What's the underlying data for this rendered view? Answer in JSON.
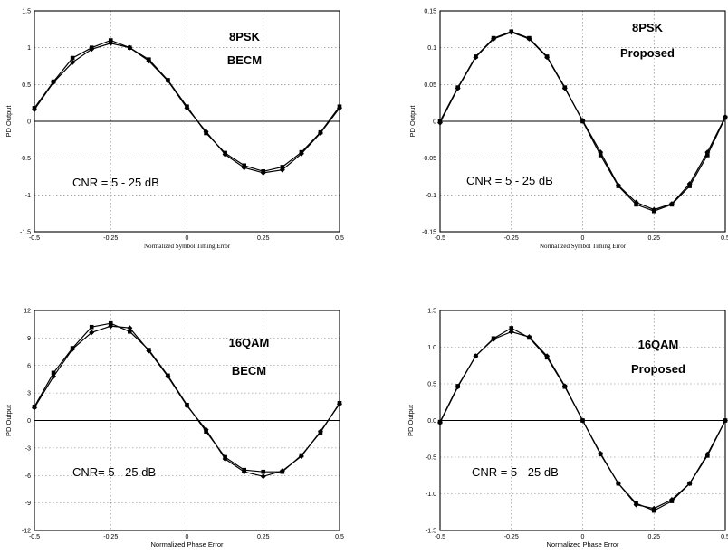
{
  "chart_data": [
    {
      "type": "line",
      "xlabel": "Normalized Symbol Timing Error",
      "ylabel": "PD Output",
      "xlim": [
        -0.5,
        0.5
      ],
      "ylim": [
        -1.5,
        1.5
      ],
      "xticks": [
        "-0.5",
        "-0.25",
        "0",
        "0.25",
        "0.5"
      ],
      "yticks": [
        "1.5",
        "1",
        "0.5",
        "0",
        "-0.5",
        "-1",
        "-1.5"
      ],
      "annotations": [
        "8PSK",
        "BECM"
      ],
      "cnr_label": "CNR = 5 - 25 dB",
      "grid": true,
      "series": [
        {
          "x": [
            -0.5,
            -0.4375,
            -0.375,
            -0.3125,
            -0.25,
            -0.1875,
            -0.125,
            -0.0625,
            0,
            0.0625,
            0.125,
            0.1875,
            0.25,
            0.3125,
            0.375,
            0.4375,
            0.5
          ],
          "values": [
            0.18,
            0.54,
            0.86,
            1.0,
            1.1,
            1.0,
            0.84,
            0.56,
            0.2,
            -0.16,
            -0.43,
            -0.6,
            -0.68,
            -0.62,
            -0.42,
            -0.15,
            0.2
          ]
        },
        {
          "x": [
            -0.5,
            -0.4375,
            -0.375,
            -0.3125,
            -0.25,
            -0.1875,
            -0.125,
            -0.0625,
            0,
            0.0625,
            0.125,
            0.1875,
            0.25,
            0.3125,
            0.375,
            0.4375,
            0.5
          ],
          "values": [
            0.16,
            0.53,
            0.8,
            0.98,
            1.06,
            1.0,
            0.82,
            0.55,
            0.18,
            -0.14,
            -0.45,
            -0.63,
            -0.7,
            -0.66,
            -0.44,
            -0.16,
            0.18
          ]
        }
      ]
    },
    {
      "type": "line",
      "xlabel": "Normalized Symbol Timing Error",
      "ylabel": "PD Output",
      "xlim": [
        -0.5,
        0.5
      ],
      "ylim": [
        -0.15,
        0.15
      ],
      "xticks": [
        "-0.5",
        "-0.25",
        "0",
        "0.25",
        "0.5"
      ],
      "yticks": [
        "0.15",
        "0.1",
        "0.05",
        "0",
        "-0.05",
        "-0.1",
        "-0.15"
      ],
      "annotations": [
        "8PSK",
        "Proposed"
      ],
      "cnr_label": "CNR = 5 - 25 dB",
      "grid": true,
      "series": [
        {
          "x": [
            -0.5,
            -0.4375,
            -0.375,
            -0.3125,
            -0.25,
            -0.1875,
            -0.125,
            -0.0625,
            0,
            0.0625,
            0.125,
            0.1875,
            0.25,
            0.3125,
            0.375,
            0.4375,
            0.5
          ],
          "values": [
            0.0,
            0.046,
            0.088,
            0.113,
            0.122,
            0.113,
            0.088,
            0.046,
            0.0,
            -0.046,
            -0.088,
            -0.113,
            -0.122,
            -0.113,
            -0.088,
            -0.046,
            0.005
          ]
        },
        {
          "x": [
            -0.5,
            -0.4375,
            -0.375,
            -0.3125,
            -0.25,
            -0.1875,
            -0.125,
            -0.0625,
            0,
            0.0625,
            0.125,
            0.1875,
            0.25,
            0.3125,
            0.375,
            0.4375,
            0.5
          ],
          "values": [
            -0.002,
            0.045,
            0.087,
            0.112,
            0.121,
            0.112,
            0.087,
            0.045,
            0.001,
            -0.042,
            -0.087,
            -0.11,
            -0.12,
            -0.112,
            -0.085,
            -0.042,
            0.006
          ]
        }
      ]
    },
    {
      "type": "line",
      "xlabel": "Normalized Phase Error",
      "ylabel": "PD Output",
      "xlim": [
        -0.5,
        0.5
      ],
      "ylim": [
        -12,
        12
      ],
      "xticks": [
        "-0.5",
        "-0.25",
        "0",
        "0.25",
        "0.5"
      ],
      "yticks": [
        "12",
        "9",
        "6",
        "3",
        "0",
        "-3",
        "-6",
        "-9",
        "-12"
      ],
      "annotations": [
        "16QAM",
        "BECM"
      ],
      "cnr_label": "CNR= 5 - 25 dB",
      "grid": true,
      "series": [
        {
          "x": [
            -0.5,
            -0.4375,
            -0.375,
            -0.3125,
            -0.25,
            -0.1875,
            -0.125,
            -0.0625,
            0,
            0.0625,
            0.125,
            0.1875,
            0.25,
            0.3125,
            0.375,
            0.4375,
            0.5
          ],
          "values": [
            1.5,
            5.2,
            7.9,
            10.2,
            10.6,
            9.7,
            7.7,
            4.9,
            1.7,
            -1.2,
            -4.0,
            -5.4,
            -5.6,
            -5.6,
            -3.8,
            -1.3,
            1.9
          ]
        },
        {
          "x": [
            -0.5,
            -0.4375,
            -0.375,
            -0.3125,
            -0.25,
            -0.1875,
            -0.125,
            -0.0625,
            0,
            0.0625,
            0.125,
            0.1875,
            0.25,
            0.3125,
            0.375,
            0.4375,
            0.5
          ],
          "values": [
            1.4,
            4.8,
            7.8,
            9.6,
            10.3,
            10.1,
            7.6,
            4.8,
            1.6,
            -1.0,
            -4.2,
            -5.6,
            -6.1,
            -5.5,
            -3.9,
            -1.2,
            1.8
          ]
        }
      ]
    },
    {
      "type": "line",
      "xlabel": "Normalized Phase Error",
      "ylabel": "PD Output",
      "xlim": [
        -0.5,
        0.5
      ],
      "ylim": [
        -1.5,
        1.5
      ],
      "xticks": [
        "-0.5",
        "-0.25",
        "0",
        "0.25",
        "0.5"
      ],
      "yticks": [
        "1.5",
        "1.0",
        "0.5",
        "0.0",
        "-0.5",
        "-1.0",
        "-1.5"
      ],
      "annotations": [
        "16QAM",
        "Proposed"
      ],
      "cnr_label": "CNR = 5 - 25 dB",
      "grid": true,
      "series": [
        {
          "x": [
            -0.5,
            -0.4375,
            -0.375,
            -0.3125,
            -0.25,
            -0.1875,
            -0.125,
            -0.0625,
            0,
            0.0625,
            0.125,
            0.1875,
            0.25,
            0.3125,
            0.375,
            0.4375,
            0.5
          ],
          "values": [
            -0.02,
            0.47,
            0.88,
            1.12,
            1.26,
            1.13,
            0.86,
            0.46,
            0.0,
            -0.46,
            -0.86,
            -1.13,
            -1.23,
            -1.1,
            -0.86,
            -0.48,
            0.0
          ]
        },
        {
          "x": [
            -0.5,
            -0.4375,
            -0.375,
            -0.3125,
            -0.25,
            -0.1875,
            -0.125,
            -0.0625,
            0,
            0.0625,
            0.125,
            0.1875,
            0.25,
            0.3125,
            0.375,
            0.4375,
            0.5
          ],
          "values": [
            -0.03,
            0.46,
            0.88,
            1.11,
            1.21,
            1.14,
            0.88,
            0.47,
            0.0,
            -0.45,
            -0.86,
            -1.15,
            -1.2,
            -1.08,
            -0.86,
            -0.46,
            0.0
          ]
        }
      ]
    }
  ]
}
